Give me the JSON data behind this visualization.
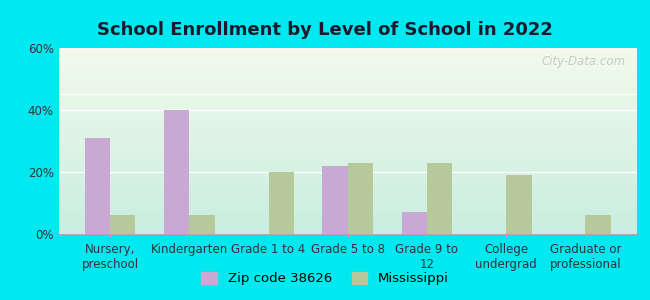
{
  "title": "School Enrollment by Level of School in 2022",
  "categories": [
    "Nursery,\npreschool",
    "Kindergarten",
    "Grade 1 to 4",
    "Grade 5 to 8",
    "Grade 9 to\n12",
    "College\nundergrad",
    "Graduate or\nprofessional"
  ],
  "zip_values": [
    31,
    40,
    0,
    22,
    7,
    0,
    0
  ],
  "ms_values": [
    6,
    6,
    20,
    23,
    23,
    19,
    6
  ],
  "zip_color": "#c9a8d4",
  "ms_color": "#b5c99a",
  "background_outer": "#00e8f0",
  "background_inner_top": "#f2faea",
  "background_inner_bottom": "#c8ede0",
  "ylim": [
    0,
    60
  ],
  "yticks": [
    0,
    20,
    40,
    60
  ],
  "ytick_labels": [
    "0%",
    "20%",
    "40%",
    "60%"
  ],
  "legend_zip_label": "Zip code 38626",
  "legend_ms_label": "Mississippi",
  "watermark": "City-Data.com",
  "title_fontsize": 13,
  "tick_fontsize": 8.5,
  "legend_fontsize": 9.5
}
